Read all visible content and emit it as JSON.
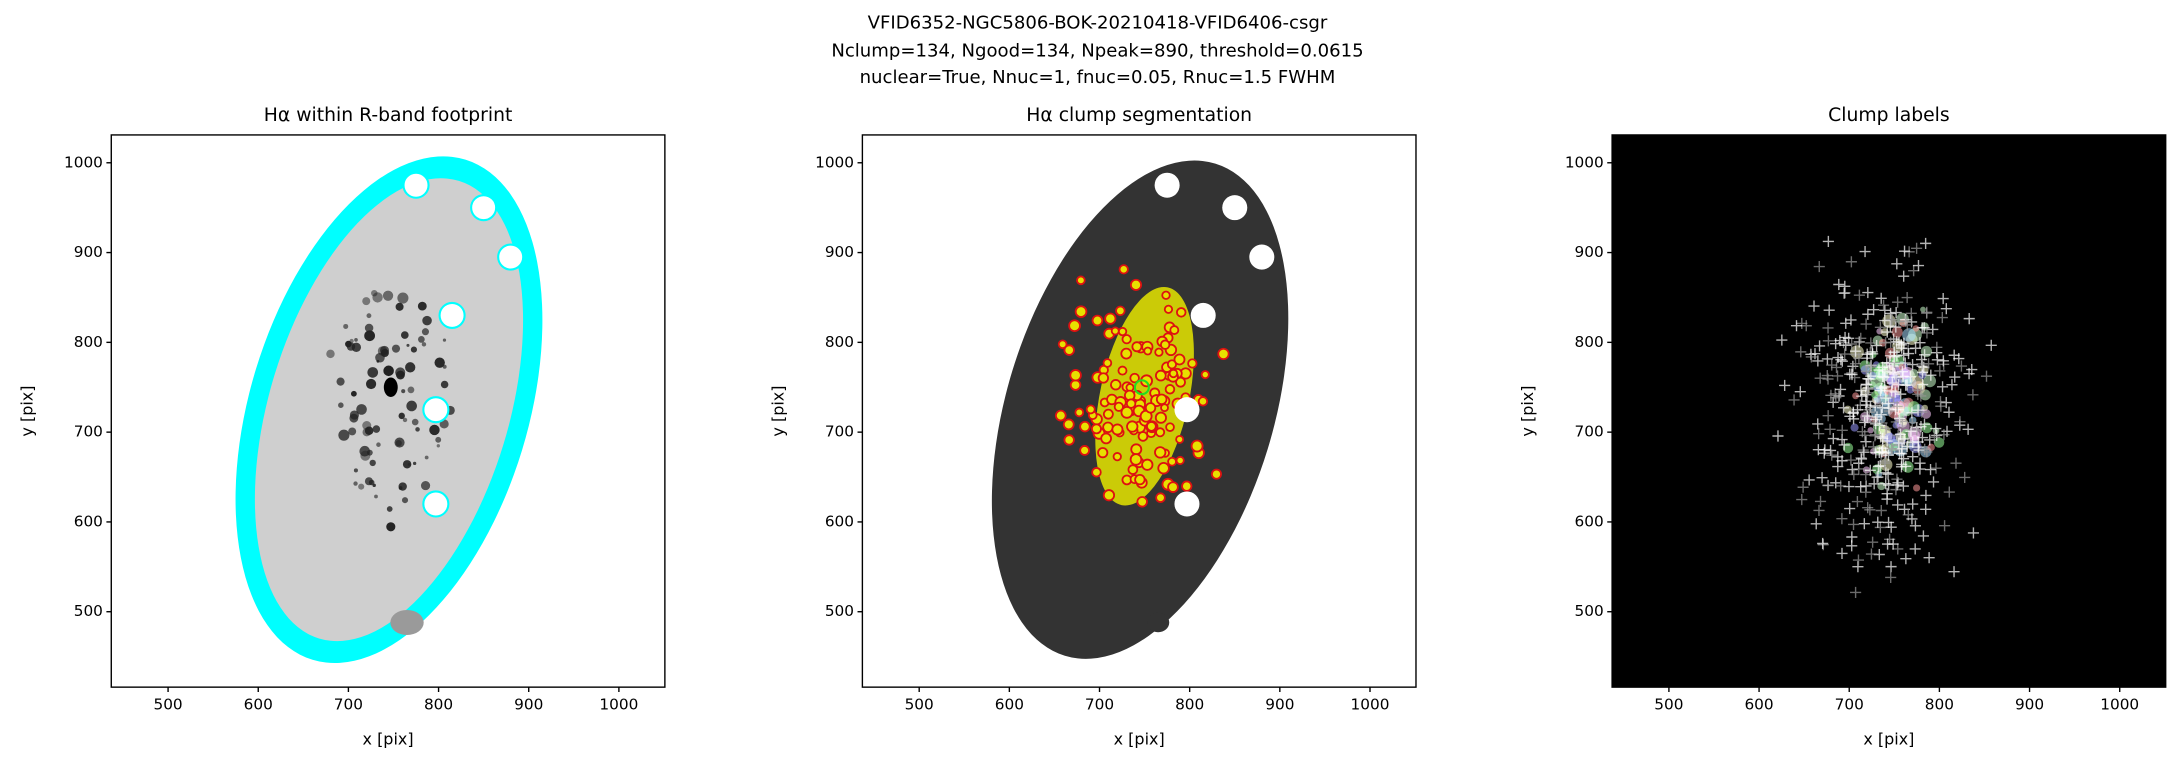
{
  "suptitle": [
    "VFID6352-NGC5806-BOK-20210418-VFID6406-csgr",
    "Nclump=134, Ngood=134, Npeak=890, threshold=0.0615",
    "nuclear=True, Nnuc=1, fnuc=0.05, Rnuc=1.5 FWHM"
  ],
  "chart_data": [
    {
      "type": "image",
      "title": "Hα within R-band footprint",
      "xlabel": "x [pix]",
      "ylabel": "y [pix]",
      "xlim": [
        437,
        1051
      ],
      "ylim": [
        416,
        1031
      ],
      "xticks": [
        500,
        600,
        700,
        800,
        900,
        1000
      ],
      "yticks": [
        500,
        600,
        700,
        800,
        900,
        1000
      ]
    },
    {
      "type": "image",
      "title": "Hα clump segmentation",
      "xlabel": "x [pix]",
      "ylabel": "y [pix]",
      "xlim": [
        437,
        1051
      ],
      "ylim": [
        416,
        1031
      ],
      "xticks": [
        500,
        600,
        700,
        800,
        900,
        1000
      ],
      "yticks": [
        500,
        600,
        700,
        800,
        900,
        1000
      ]
    },
    {
      "type": "image",
      "title": "Clump labels",
      "xlabel": "x [pix]",
      "ylabel": "y [pix]",
      "xlim": [
        437,
        1051
      ],
      "ylim": [
        416,
        1031
      ],
      "xticks": [
        500,
        600,
        700,
        800,
        900,
        1000
      ],
      "yticks": [
        500,
        600,
        700,
        800,
        900,
        1000
      ]
    }
  ]
}
